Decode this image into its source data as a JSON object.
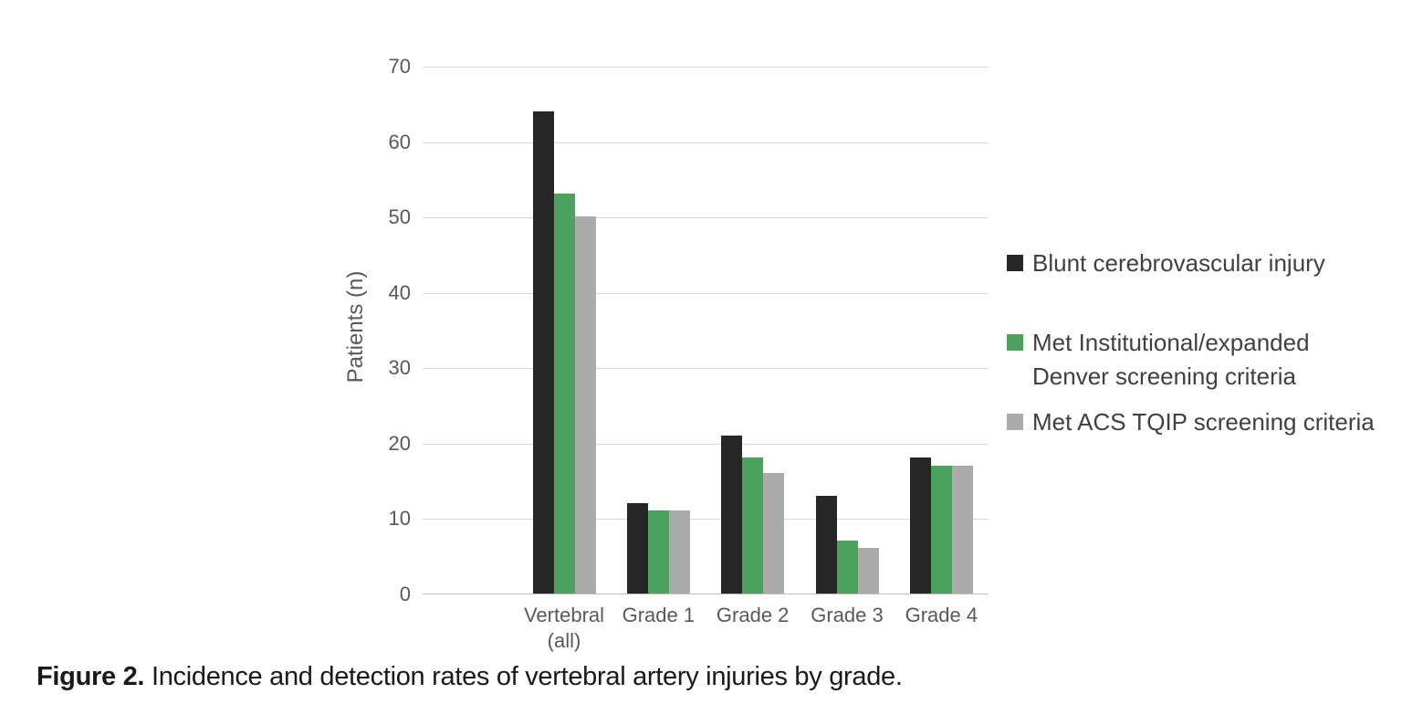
{
  "figure": {
    "caption_label": "Figure 2.",
    "caption_text": "Incidence and detection rates of vertebral artery injuries by grade."
  },
  "chart_data": {
    "type": "bar",
    "title": "",
    "xlabel": "",
    "ylabel": "Patients (n)",
    "ylim": [
      0,
      70
    ],
    "yticks": [
      0,
      10,
      20,
      30,
      40,
      50,
      60,
      70
    ],
    "grid": true,
    "legend_position": "right",
    "categories": [
      "Vertebral\n(all)",
      "Grade 1",
      "Grade 2",
      "Grade 3",
      "Grade 4"
    ],
    "series": [
      {
        "name": "Blunt cerebrovascular injury",
        "color": "#262626",
        "values": [
          64,
          12,
          21,
          13,
          18
        ]
      },
      {
        "name": "Met Institutional/expanded Denver screening criteria",
        "color": "#4ba25c",
        "values": [
          53,
          11,
          18,
          7,
          17
        ]
      },
      {
        "name": "Met ACS TQIP screening criteria",
        "color": "#ababab",
        "values": [
          50,
          11,
          16,
          6,
          17
        ]
      }
    ]
  },
  "colors": {
    "background": "#ffffff",
    "grid": "#d9d9d9",
    "axis_line": "#bfbfbf",
    "tick_text": "#595959",
    "legend_text": "#404040",
    "caption_text": "#1a1a1a"
  }
}
